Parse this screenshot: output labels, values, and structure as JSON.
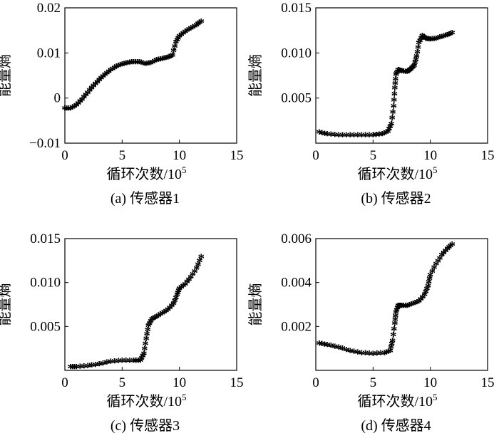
{
  "figure": {
    "ylabel": "能量熵",
    "xlabel_base": "循环次数/10",
    "xlabel_exp": "5"
  },
  "chart_data": [
    {
      "type": "line",
      "caption": "(a) 传感器1",
      "xlabel": "循环次数/10⁵",
      "ylabel": "能量熵",
      "xlim": [
        0,
        15
      ],
      "ylim": [
        -0.01,
        0.02
      ],
      "xticks": [
        0,
        5,
        10,
        15
      ],
      "xtick_labels": [
        "0",
        "5",
        "10",
        "15"
      ],
      "yticks": [
        -0.01,
        0,
        0.01,
        0.02
      ],
      "ytick_labels": [
        "−0.01",
        "0",
        "0.01",
        "0.02"
      ],
      "marker": "*",
      "x": [
        0.0,
        0.5,
        1.0,
        1.5,
        2.0,
        2.5,
        3.0,
        3.5,
        4.0,
        4.5,
        5.0,
        5.5,
        6.0,
        6.5,
        7.0,
        7.5,
        8.0,
        8.5,
        9.0,
        9.4,
        9.7,
        10.0,
        10.5,
        11.0,
        11.5,
        11.9
      ],
      "y": [
        -0.0025,
        -0.0025,
        -0.0018,
        -0.0005,
        0.001,
        0.0025,
        0.0038,
        0.005,
        0.006,
        0.0068,
        0.0073,
        0.0076,
        0.0078,
        0.0078,
        0.0074,
        0.0076,
        0.0082,
        0.0085,
        0.0088,
        0.0093,
        0.0122,
        0.0135,
        0.0145,
        0.0153,
        0.016,
        0.0168
      ]
    },
    {
      "type": "line",
      "caption": "(b) 传感器2",
      "xlabel": "循环次数/10⁵",
      "ylabel": "能量熵",
      "xlim": [
        0,
        15
      ],
      "ylim": [
        0,
        0.015
      ],
      "xticks": [
        0,
        5,
        10,
        15
      ],
      "xtick_labels": [
        "0",
        "5",
        "10",
        "15"
      ],
      "yticks": [
        0.005,
        0.01,
        0.015
      ],
      "ytick_labels": [
        "0.005",
        "0.010",
        "0.015"
      ],
      "marker": "*",
      "x": [
        0.3,
        1.0,
        2.0,
        3.0,
        4.0,
        5.0,
        5.8,
        6.3,
        6.6,
        6.8,
        6.9,
        7.0,
        7.2,
        7.5,
        8.0,
        8.3,
        8.6,
        8.8,
        9.0,
        9.3,
        9.6,
        10.0,
        10.5,
        11.0,
        11.5,
        11.9
      ],
      "y": [
        0.0011,
        0.0009,
        0.0008,
        0.0008,
        0.0008,
        0.0008,
        0.0009,
        0.0012,
        0.002,
        0.004,
        0.006,
        0.0075,
        0.008,
        0.0079,
        0.0078,
        0.0081,
        0.0085,
        0.0095,
        0.011,
        0.0118,
        0.0115,
        0.0114,
        0.0115,
        0.0117,
        0.0119,
        0.0121
      ]
    },
    {
      "type": "line",
      "caption": "(c) 传感器3",
      "xlabel": "循环次数/10⁵",
      "ylabel": "能量熵",
      "xlim": [
        0,
        15
      ],
      "ylim": [
        0,
        0.015
      ],
      "xticks": [
        0,
        5,
        10,
        15
      ],
      "xtick_labels": [
        "0",
        "5",
        "10",
        "15"
      ],
      "yticks": [
        0.005,
        0.01,
        0.015
      ],
      "ytick_labels": [
        "0.005",
        "0.010",
        "0.015"
      ],
      "marker": "*",
      "x": [
        0.5,
        1.0,
        2.0,
        3.0,
        4.0,
        5.0,
        6.0,
        6.6,
        6.9,
        7.1,
        7.3,
        7.6,
        8.0,
        8.5,
        9.0,
        9.5,
        9.8,
        10.0,
        10.5,
        11.0,
        11.5,
        11.9
      ],
      "y": [
        0.0003,
        0.0003,
        0.0004,
        0.0006,
        0.0009,
        0.001,
        0.001,
        0.001,
        0.0018,
        0.0035,
        0.005,
        0.0057,
        0.006,
        0.0064,
        0.0068,
        0.0075,
        0.0085,
        0.0092,
        0.0097,
        0.0105,
        0.0115,
        0.0128
      ]
    },
    {
      "type": "line",
      "caption": "(d) 传感器4",
      "xlabel": "循环次数/10⁵",
      "ylabel": "能量熵",
      "xlim": [
        0,
        15
      ],
      "ylim": [
        0,
        0.006
      ],
      "xticks": [
        0,
        5,
        10,
        15
      ],
      "xtick_labels": [
        "0",
        "5",
        "10",
        "15"
      ],
      "yticks": [
        0.002,
        0.004,
        0.006
      ],
      "ytick_labels": [
        "0.002",
        "0.004",
        "0.006"
      ],
      "marker": "*",
      "x": [
        0.3,
        1.0,
        2.0,
        3.0,
        4.0,
        5.0,
        6.0,
        6.5,
        6.7,
        6.9,
        7.0,
        7.2,
        7.5,
        8.0,
        8.5,
        9.0,
        9.5,
        9.8,
        10.0,
        10.5,
        11.0,
        11.5,
        11.9
      ],
      "y": [
        0.00118,
        0.00112,
        0.001,
        0.00085,
        0.00075,
        0.00072,
        0.00075,
        0.00085,
        0.0013,
        0.0021,
        0.0026,
        0.0029,
        0.0029,
        0.0029,
        0.003,
        0.0031,
        0.0034,
        0.0038,
        0.0043,
        0.0048,
        0.0052,
        0.0055,
        0.0057
      ]
    }
  ]
}
